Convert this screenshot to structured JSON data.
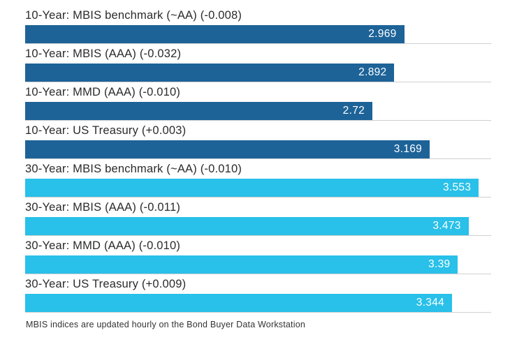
{
  "chart_data": {
    "type": "bar",
    "orientation": "horizontal",
    "title": "",
    "xlabel": "",
    "ylabel": "",
    "xlim": [
      0,
      3.65
    ],
    "grid": "row-baselines",
    "legend": "none",
    "colors": {
      "10-year": "#1d6398",
      "30-year": "#29c0e9"
    },
    "bars": [
      {
        "label": "10-Year: MBIS benchmark (~AA) (-0.008)",
        "value": 2.969,
        "value_label": "2.969",
        "group": "10-year"
      },
      {
        "label": "10-Year: MBIS (AAA) (-0.032)",
        "value": 2.892,
        "value_label": "2.892",
        "group": "10-year"
      },
      {
        "label": "10-Year: MMD (AAA) (-0.010)",
        "value": 2.72,
        "value_label": "2.72",
        "group": "10-year"
      },
      {
        "label": "10-Year: US Treasury (+0.003)",
        "value": 3.169,
        "value_label": "3.169",
        "group": "10-year"
      },
      {
        "label": "30-Year: MBIS benchmark (~AA) (-0.010)",
        "value": 3.553,
        "value_label": "3.553",
        "group": "30-year"
      },
      {
        "label": "30-Year: MBIS (AAA) (-0.011)",
        "value": 3.473,
        "value_label": "3.473",
        "group": "30-year"
      },
      {
        "label": "30-Year: MMD (AAA) (-0.010)",
        "value": 3.39,
        "value_label": "3.39",
        "group": "30-year"
      },
      {
        "label": "30-Year: US Treasury (+0.009)",
        "value": 3.344,
        "value_label": "3.344",
        "group": "30-year"
      }
    ]
  },
  "footer": {
    "note": "MBIS indices are updated hourly on the Bond Buyer Data Workstation"
  }
}
